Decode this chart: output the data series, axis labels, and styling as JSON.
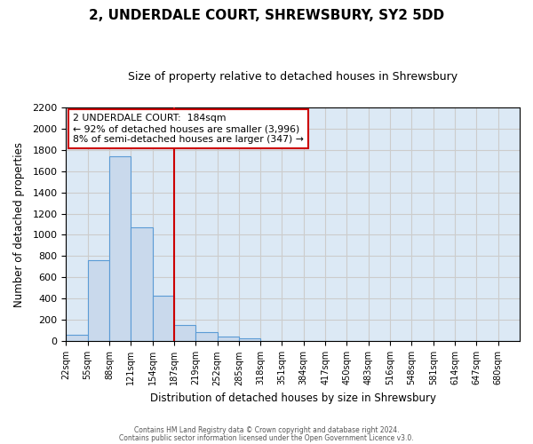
{
  "title": "2, UNDERDALE COURT, SHREWSBURY, SY2 5DD",
  "subtitle": "Size of property relative to detached houses in Shrewsbury",
  "xlabel": "Distribution of detached houses by size in Shrewsbury",
  "ylabel": "Number of detached properties",
  "bin_labels": [
    "22sqm",
    "55sqm",
    "88sqm",
    "121sqm",
    "154sqm",
    "187sqm",
    "219sqm",
    "252sqm",
    "285sqm",
    "318sqm",
    "351sqm",
    "384sqm",
    "417sqm",
    "450sqm",
    "483sqm",
    "516sqm",
    "548sqm",
    "581sqm",
    "614sqm",
    "647sqm",
    "680sqm"
  ],
  "bar_values": [
    60,
    760,
    1740,
    1070,
    430,
    155,
    85,
    45,
    30,
    0,
    0,
    0,
    0,
    0,
    0,
    0,
    0,
    0,
    0,
    0,
    0
  ],
  "bar_color": "#c9d9ec",
  "bar_edge_color": "#5b9bd5",
  "vline_x": 5.0,
  "vline_color": "#cc0000",
  "annotation_title": "2 UNDERDALE COURT:  184sqm",
  "annotation_line1": "← 92% of detached houses are smaller (3,996)",
  "annotation_line2": "8% of semi-detached houses are larger (347) →",
  "annotation_box_color": "#ffffff",
  "annotation_box_edge": "#cc0000",
  "ylim": [
    0,
    2200
  ],
  "yticks": [
    0,
    200,
    400,
    600,
    800,
    1000,
    1200,
    1400,
    1600,
    1800,
    2000,
    2200
  ],
  "footer1": "Contains HM Land Registry data © Crown copyright and database right 2024.",
  "footer2": "Contains public sector information licensed under the Open Government Licence v3.0.",
  "grid_color": "#cccccc",
  "background_color": "#dce9f5"
}
